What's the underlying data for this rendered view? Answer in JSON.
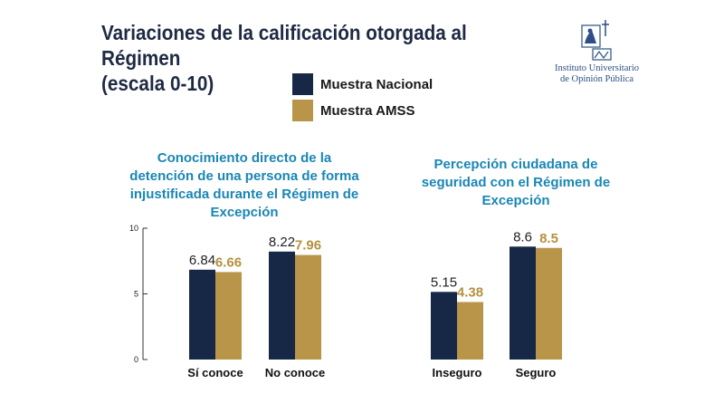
{
  "header": {
    "title_line1": "Variaciones de la calificación otorgada al Régimen",
    "title_line2": "(escala 0-10)"
  },
  "logo": {
    "line1": "Instituto Universitario",
    "line2": "de Opinión Pública"
  },
  "legend": [
    {
      "label": "Muestra Nacional",
      "color": "#172846"
    },
    {
      "label": "Muestra AMSS",
      "color": "#b89548"
    }
  ],
  "colors": {
    "series_value_label": [
      "#222222",
      "#b4913f"
    ],
    "panel_title": "#1a86b5",
    "axis": "#333333"
  },
  "chart_data": [
    {
      "type": "bar",
      "title": "Conocimiento directo de la detención de una persona de forma injustificada durante el Régimen de Excepción",
      "title_lines": [
        "Conocimiento directo de la",
        "detención de una persona de forma",
        "injustificada durante el Régimen de",
        "Excepción"
      ],
      "categories": [
        "Sí conoce",
        "No conoce"
      ],
      "series": [
        {
          "name": "Muestra Nacional",
          "values": [
            6.84,
            8.22
          ]
        },
        {
          "name": "Muestra AMSS",
          "values": [
            6.66,
            7.96
          ]
        }
      ],
      "ylim": [
        0,
        10
      ],
      "yticks": [
        0,
        5,
        10
      ]
    },
    {
      "type": "bar",
      "title": "Percepción ciudadana de seguridad con el Régimen de Excepción",
      "title_lines": [
        "Percepción ciudadana de",
        "seguridad con el Régimen de",
        "Excepción"
      ],
      "categories": [
        "Inseguro",
        "Seguro"
      ],
      "series": [
        {
          "name": "Muestra Nacional",
          "values": [
            5.15,
            8.6
          ]
        },
        {
          "name": "Muestra AMSS",
          "values": [
            4.38,
            8.5
          ]
        }
      ],
      "ylim": [
        0,
        10
      ],
      "yticks": []
    }
  ]
}
